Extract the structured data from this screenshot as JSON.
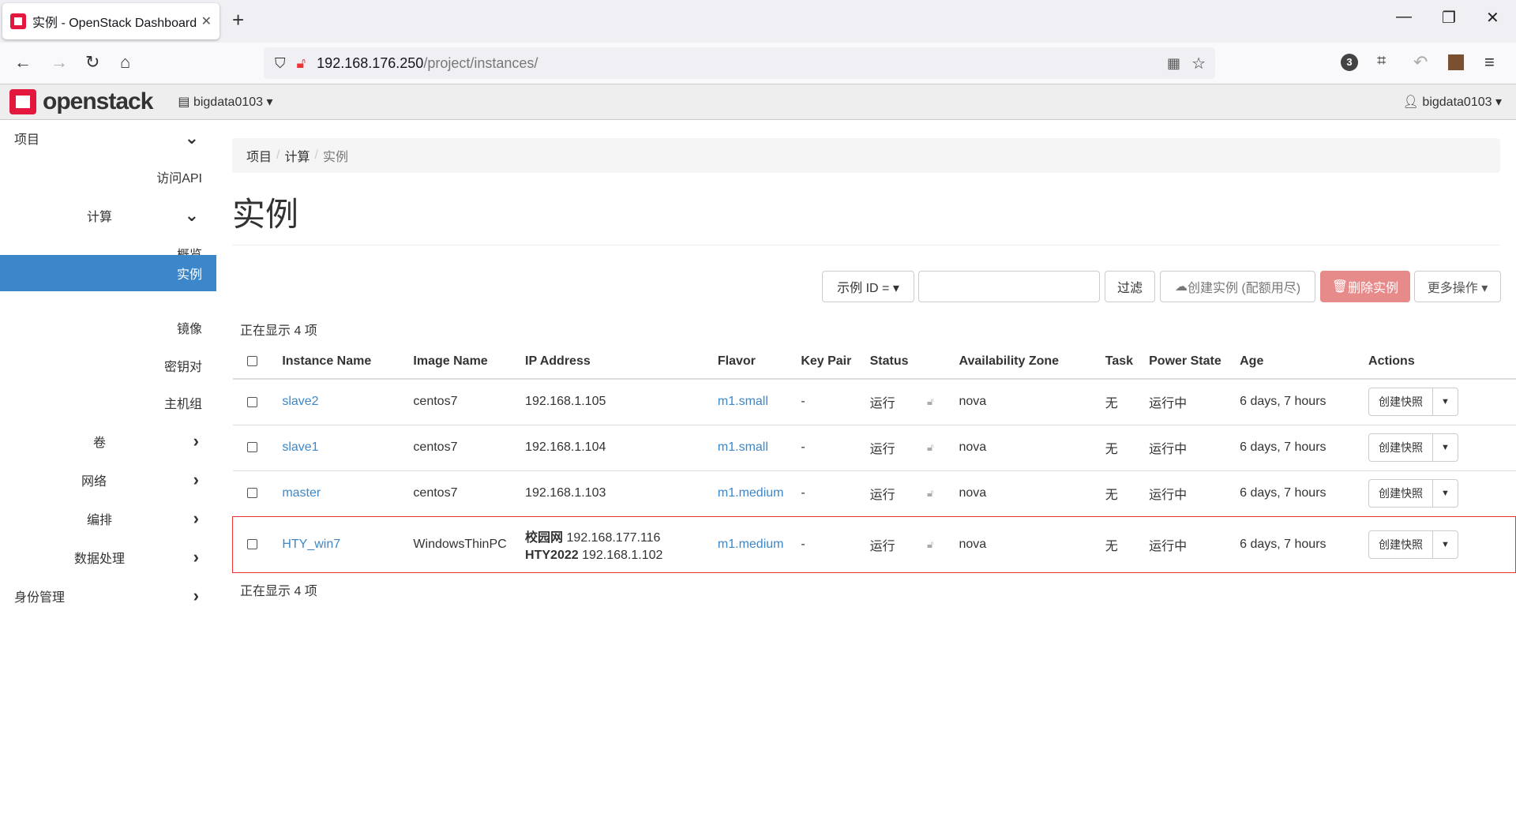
{
  "browser": {
    "tab_title": "实例 - OpenStack Dashboard",
    "url_host": "192.168.176.250",
    "url_path": "/project/instances/",
    "badge_count": "3"
  },
  "header": {
    "brand": "openstack",
    "project": "bigdata0103",
    "user": "bigdata0103"
  },
  "sidebar": {
    "items": [
      {
        "label": "项目",
        "chev": "⌄"
      },
      {
        "label": "访问API"
      },
      {
        "label": "计算",
        "chev": "⌄"
      },
      {
        "label": "概览"
      },
      {
        "label": "实例",
        "active": true
      },
      {
        "label": "镜像"
      },
      {
        "label": "密钥对"
      },
      {
        "label": "主机组"
      },
      {
        "label": "卷",
        "chev": "›"
      },
      {
        "label": "网络",
        "chev": "›"
      },
      {
        "label": "编排",
        "chev": "›"
      },
      {
        "label": "数据处理",
        "chev": "›"
      },
      {
        "label": "身份管理",
        "chev": "›"
      }
    ]
  },
  "breadcrumb": [
    "项目",
    "计算",
    "实例"
  ],
  "page_title": "实例",
  "toolbar": {
    "filter_field": "示例 ID = ▾",
    "filter_value": "",
    "filter_button": "过滤",
    "create_button": "创建实例 (配额用尽)",
    "delete_button": "删除实例",
    "more_button": "更多操作 ▾"
  },
  "count_text": "正在显示 4 项",
  "colors": {
    "accent": "#3c87ca",
    "danger": "#e68a8a",
    "highlight": "#e33333"
  },
  "table": {
    "headers": [
      "Instance Name",
      "Image Name",
      "IP Address",
      "Flavor",
      "Key Pair",
      "Status",
      "",
      "Availability Zone",
      "Task",
      "Power State",
      "Age",
      "Actions"
    ],
    "rows": [
      {
        "name": "slave2",
        "image": "centos7",
        "ip": "192.168.1.105",
        "ip_label": "",
        "ip2_label": "",
        "ip2": "",
        "flavor": "m1.small",
        "keypair": "-",
        "status": "运行",
        "az": "nova",
        "task": "无",
        "power": "运行中",
        "age": "6 days, 7 hours",
        "action": "创建快照"
      },
      {
        "name": "slave1",
        "image": "centos7",
        "ip": "192.168.1.104",
        "ip_label": "",
        "ip2_label": "",
        "ip2": "",
        "flavor": "m1.small",
        "keypair": "-",
        "status": "运行",
        "az": "nova",
        "task": "无",
        "power": "运行中",
        "age": "6 days, 7 hours",
        "action": "创建快照"
      },
      {
        "name": "master",
        "image": "centos7",
        "ip": "192.168.1.103",
        "ip_label": "",
        "ip2_label": "",
        "ip2": "",
        "flavor": "m1.medium",
        "keypair": "-",
        "status": "运行",
        "az": "nova",
        "task": "无",
        "power": "运行中",
        "age": "6 days, 7 hours",
        "action": "创建快照"
      },
      {
        "name": "HTY_win7",
        "image": "WindowsThinPC",
        "ip_label": "校园网",
        "ip": "192.168.177.116",
        "ip2_label": "HTY2022",
        "ip2": "192.168.1.102",
        "flavor": "m1.medium",
        "keypair": "-",
        "status": "运行",
        "az": "nova",
        "task": "无",
        "power": "运行中",
        "age": "6 days, 7 hours",
        "action": "创建快照",
        "highlighted": true
      }
    ]
  }
}
